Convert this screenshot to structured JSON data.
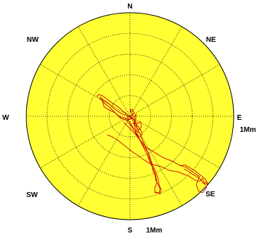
{
  "chart_data": {
    "type": "polar",
    "title": "",
    "direction_labels": {
      "n": "N",
      "ne": "NE",
      "e": "E",
      "se": "SE",
      "s": "S",
      "sw": "SW",
      "w": "W",
      "nw": "NW"
    },
    "radius_max_label": "1Mm",
    "radius_max": 1,
    "radial_unit": "Mm",
    "rings": 5,
    "spokes_every_deg": 30,
    "grid": true,
    "colors": {
      "face": "#ffff33",
      "grid": "#000000",
      "track": "#cc0000"
    },
    "series": [
      {
        "name": "",
        "coordinate_system": "east_north_Mm",
        "points": [
          [
            -0.29,
            0.19
          ],
          [
            -0.26,
            0.16
          ],
          [
            -0.23,
            0.14
          ],
          [
            -0.19,
            0.11
          ],
          [
            -0.15,
            0.07
          ],
          [
            -0.12,
            0.05
          ],
          [
            -0.09,
            0.03
          ],
          [
            -0.07,
            0.02
          ],
          [
            -0.04,
            0.01
          ],
          [
            -0.02,
            0.0
          ],
          [
            -0.02,
            -0.03
          ],
          [
            0.02,
            -0.02
          ],
          [
            0.05,
            -0.06
          ],
          [
            0.08,
            -0.1
          ],
          [
            0.1,
            -0.13
          ],
          [
            0.12,
            -0.17
          ],
          [
            0.1,
            -0.2
          ],
          [
            0.07,
            -0.2
          ],
          [
            0.03,
            -0.11
          ],
          [
            0.0,
            -0.06
          ],
          [
            -0.04,
            -0.02
          ],
          [
            -0.09,
            -0.01
          ],
          [
            -0.14,
            0.03
          ],
          [
            -0.2,
            0.06
          ],
          [
            -0.25,
            0.09
          ],
          [
            -0.27,
            0.16
          ],
          [
            -0.29,
            0.17
          ]
        ]
      },
      {
        "name": "",
        "coordinate_system": "east_north_Mm",
        "points": [
          [
            0.0,
            0.04
          ],
          [
            0.02,
            0.07
          ],
          [
            0.04,
            0.03
          ],
          [
            0.0,
            -0.01
          ],
          [
            0.03,
            -0.02
          ],
          [
            0.05,
            -0.04
          ],
          [
            0.03,
            -0.07
          ],
          [
            0.06,
            -0.1
          ],
          [
            0.08,
            -0.14
          ],
          [
            0.1,
            -0.18
          ],
          [
            0.12,
            -0.23
          ],
          [
            0.14,
            -0.27
          ],
          [
            0.16,
            -0.32
          ],
          [
            0.18,
            -0.37
          ],
          [
            0.19,
            -0.42
          ],
          [
            0.21,
            -0.47
          ],
          [
            0.22,
            -0.52
          ],
          [
            0.24,
            -0.57
          ],
          [
            0.25,
            -0.62
          ],
          [
            0.27,
            -0.66
          ],
          [
            0.29,
            -0.7
          ],
          [
            0.28,
            -0.74
          ],
          [
            0.24,
            -0.74
          ],
          [
            0.24,
            -0.69
          ],
          [
            0.26,
            -0.64
          ],
          [
            0.25,
            -0.58
          ],
          [
            0.23,
            -0.52
          ],
          [
            0.2,
            -0.46
          ],
          [
            0.17,
            -0.38
          ],
          [
            0.13,
            -0.3
          ],
          [
            0.09,
            -0.22
          ],
          [
            0.05,
            -0.13
          ]
        ]
      },
      {
        "name": "",
        "coordinate_system": "east_north_Mm",
        "points": [
          [
            -0.22,
            -0.18
          ],
          [
            -0.17,
            -0.2
          ],
          [
            -0.12,
            -0.23
          ],
          [
            -0.07,
            -0.27
          ],
          [
            -0.02,
            -0.31
          ],
          [
            0.03,
            -0.35
          ],
          [
            0.08,
            -0.38
          ],
          [
            0.13,
            -0.42
          ],
          [
            0.18,
            -0.45
          ],
          [
            0.23,
            -0.47
          ],
          [
            0.28,
            -0.48
          ],
          [
            0.33,
            -0.5
          ],
          [
            0.37,
            -0.52
          ],
          [
            0.42,
            -0.53
          ],
          [
            0.47,
            -0.54
          ],
          [
            0.52,
            -0.56
          ],
          [
            0.57,
            -0.58
          ],
          [
            0.6,
            -0.6
          ],
          [
            0.63,
            -0.62
          ],
          [
            0.67,
            -0.63
          ],
          [
            0.7,
            -0.6
          ],
          [
            0.72,
            -0.66
          ],
          [
            0.75,
            -0.64
          ],
          [
            0.73,
            -0.7
          ],
          [
            0.7,
            -0.74
          ],
          [
            0.66,
            -0.72
          ],
          [
            0.64,
            -0.66
          ],
          [
            0.67,
            -0.58
          ],
          [
            0.62,
            -0.55
          ],
          [
            0.58,
            -0.52
          ],
          [
            0.53,
            -0.49
          ],
          [
            0.47,
            -0.47
          ],
          [
            0.42,
            -0.44
          ],
          [
            0.37,
            -0.42
          ],
          [
            0.32,
            -0.4
          ],
          [
            0.27,
            -0.37
          ],
          [
            0.22,
            -0.34
          ],
          [
            0.17,
            -0.31
          ],
          [
            0.13,
            -0.27
          ],
          [
            0.09,
            -0.22
          ],
          [
            0.06,
            -0.17
          ],
          [
            0.03,
            -0.12
          ],
          [
            0.0,
            -0.08
          ],
          [
            -0.03,
            -0.05
          ]
        ]
      },
      {
        "name": "",
        "coordinate_system": "east_north_Mm",
        "points": [
          [
            -0.32,
            0.19
          ],
          [
            -0.3,
            0.21
          ],
          [
            -0.27,
            0.2
          ],
          [
            -0.24,
            0.18
          ],
          [
            -0.2,
            0.15
          ],
          [
            -0.16,
            0.12
          ],
          [
            -0.13,
            0.1
          ],
          [
            -0.1,
            0.08
          ],
          [
            -0.07,
            0.05
          ],
          [
            -0.04,
            0.03
          ],
          [
            -0.01,
            0.0
          ],
          [
            0.02,
            -0.01
          ],
          [
            0.0,
            -0.03
          ],
          [
            -0.03,
            -0.04
          ],
          [
            -0.06,
            -0.03
          ],
          [
            -0.09,
            -0.02
          ],
          [
            -0.12,
            0.01
          ],
          [
            -0.16,
            0.05
          ],
          [
            -0.2,
            0.09
          ],
          [
            -0.24,
            0.12
          ],
          [
            -0.27,
            0.15
          ],
          [
            -0.3,
            0.18
          ]
        ]
      },
      {
        "name": "",
        "coordinate_system": "east_north_Mm",
        "points": [
          [
            -0.06,
            -0.06
          ],
          [
            -0.02,
            -0.1
          ],
          [
            0.02,
            -0.14
          ],
          [
            0.06,
            -0.18
          ],
          [
            0.1,
            -0.24
          ],
          [
            0.14,
            -0.3
          ],
          [
            0.18,
            -0.36
          ],
          [
            0.2,
            -0.42
          ],
          [
            0.22,
            -0.48
          ],
          [
            0.25,
            -0.54
          ],
          [
            0.27,
            -0.6
          ],
          [
            0.28,
            -0.66
          ],
          [
            0.3,
            -0.71
          ],
          [
            0.29,
            -0.75
          ],
          [
            0.25,
            -0.73
          ]
        ]
      },
      {
        "name": "",
        "coordinate_system": "east_north_Mm",
        "points": [
          [
            0.0,
            0.07
          ],
          [
            0.02,
            0.02
          ],
          [
            0.04,
            -0.01
          ],
          [
            0.06,
            0.02
          ],
          [
            0.05,
            -0.05
          ],
          [
            0.08,
            -0.07
          ],
          [
            0.1,
            -0.05
          ],
          [
            0.11,
            -0.1
          ],
          [
            0.09,
            -0.13
          ],
          [
            0.07,
            -0.12
          ],
          [
            0.06,
            -0.08
          ],
          [
            0.04,
            -0.06
          ],
          [
            0.05,
            -0.12
          ],
          [
            0.08,
            -0.16
          ]
        ]
      },
      {
        "name": "",
        "coordinate_system": "east_north_Mm",
        "points": [
          [
            0.48,
            -0.48
          ],
          [
            0.53,
            -0.47
          ],
          [
            0.58,
            -0.5
          ],
          [
            0.63,
            -0.53
          ],
          [
            0.68,
            -0.57
          ],
          [
            0.72,
            -0.6
          ],
          [
            0.74,
            -0.63
          ],
          [
            0.71,
            -0.65
          ],
          [
            0.67,
            -0.6
          ],
          [
            0.64,
            -0.58
          ],
          [
            0.6,
            -0.56
          ],
          [
            0.56,
            -0.53
          ],
          [
            0.52,
            -0.51
          ]
        ]
      }
    ]
  }
}
